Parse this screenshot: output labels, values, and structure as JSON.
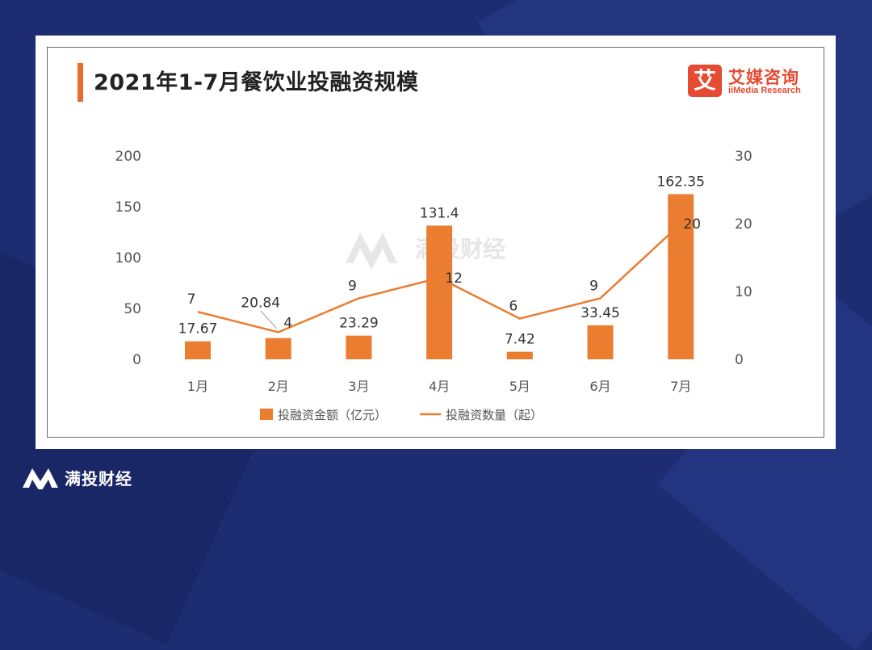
{
  "title": "2021年1-7月餐饮业投融资规模",
  "brand": {
    "cn": "艾媒咨询",
    "en": "iiMedia Research",
    "logo_glyph": "艾"
  },
  "watermark": "满投财经",
  "footer": {
    "text": "满投财经"
  },
  "colors": {
    "bar": "#ea7d2f",
    "line": "#ea7d2f",
    "accent": "#e54a32",
    "background": "#1e2d72"
  },
  "chart_data": {
    "type": "bar",
    "categories": [
      "1月",
      "2月",
      "3月",
      "4月",
      "5月",
      "6月",
      "7月"
    ],
    "series": [
      {
        "name": "投融资金额（亿元）",
        "type": "bar",
        "axis": "left",
        "values": [
          17.67,
          20.84,
          23.29,
          131.4,
          7.42,
          33.45,
          162.35
        ]
      },
      {
        "name": "投融资数量（起）",
        "type": "line",
        "axis": "right",
        "values": [
          7,
          4,
          9,
          12,
          6,
          9,
          20
        ]
      }
    ],
    "y_left": {
      "ticks": [
        0,
        50,
        100,
        150,
        200
      ],
      "ylim": [
        0,
        200
      ]
    },
    "y_right": {
      "ticks": [
        0,
        10,
        20,
        30
      ],
      "ylim": [
        0,
        30
      ]
    },
    "legend_position": "bottom-center",
    "grid": false
  }
}
